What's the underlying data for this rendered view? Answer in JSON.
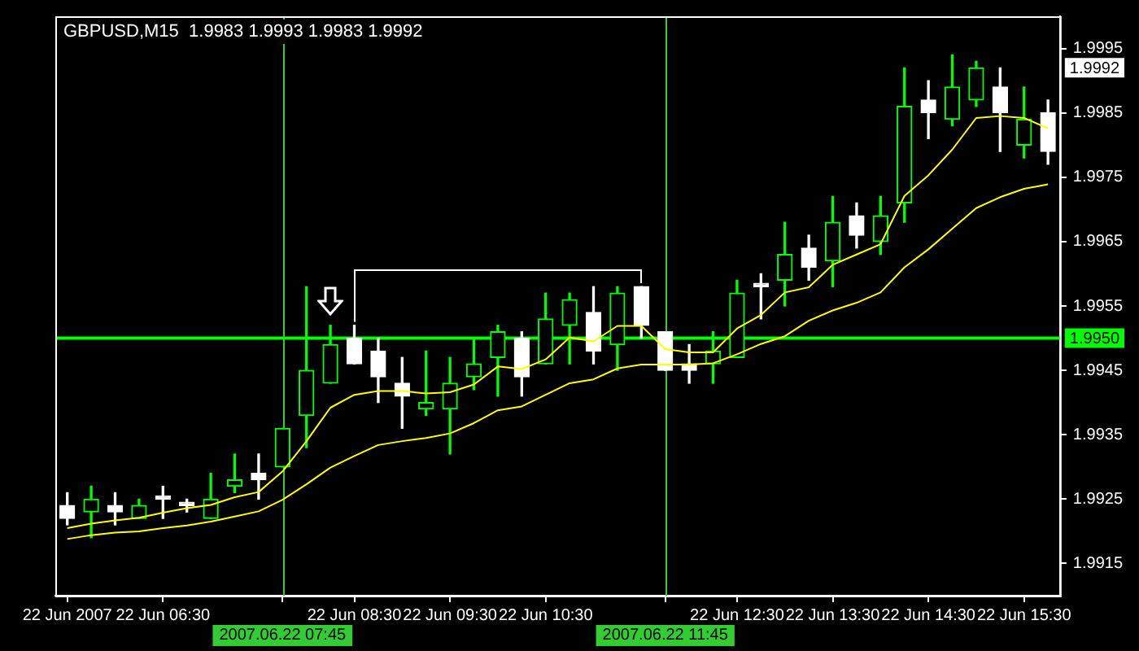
{
  "chart_data": {
    "type": "candlestick",
    "title": "GBPUSD,M15  1.9983 1.9993 1.9983 1.9992",
    "colors": [
      "#ffffff",
      "#00ff00",
      "#ffffff",
      "#00ff00",
      "#ffffff",
      "#ffffff",
      "#00ff00",
      "#00ff00",
      "#ffffff",
      "#00ff00",
      "#00ff00",
      "#00ff00",
      "#ffffff",
      "#ffffff",
      "#ffffff",
      "#00ff00",
      "#00ff00",
      "#00ff00",
      "#00ff00",
      "#ffffff",
      "#00ff00",
      "#00ff00",
      "#ffffff",
      "#00ff00",
      "#ffffff",
      "#ffffff",
      "#ffffff",
      "#00ff00",
      "#00ff00",
      "#ffffff",
      "#00ff00",
      "#ffffff",
      "#00ff00",
      "#ffffff",
      "#00ff00",
      "#00ff00",
      "#ffffff",
      "#00ff00",
      "#00ff00",
      "#ffffff",
      "#00ff00",
      "#ffffff"
    ],
    "categories": [
      "22 Jun 2007",
      null,
      null,
      null,
      "22 Jun 06:30",
      null,
      null,
      null,
      null,
      "2007.06.22 07:45",
      null,
      null,
      "22 Jun 08:30",
      null,
      null,
      null,
      "22 Jun 09:30",
      null,
      null,
      null,
      "22 Jun 10:30",
      null,
      null,
      null,
      null,
      "2007.06.22 11:45",
      null,
      null,
      "22 Jun 12:30",
      null,
      null,
      null,
      "22 Jun 13:30",
      null,
      null,
      null,
      "22 Jun 14:30",
      null,
      null,
      null,
      "22 Jun 15:30",
      null
    ],
    "ohlc": [
      [
        1.9924,
        1.9926,
        1.9921,
        1.9922
      ],
      [
        1.9923,
        1.9927,
        1.9919,
        1.9925
      ],
      [
        1.9924,
        1.9926,
        1.9921,
        1.9923
      ],
      [
        1.9922,
        1.9925,
        1.9922,
        1.9924
      ],
      [
        1.9925,
        1.9927,
        1.9922,
        1.9925
      ],
      [
        1.9924,
        1.9925,
        1.9923,
        1.9924
      ],
      [
        1.9922,
        1.9929,
        1.9922,
        1.9925
      ],
      [
        1.9927,
        1.9932,
        1.9926,
        1.9928
      ],
      [
        1.9929,
        1.9932,
        1.9925,
        1.9928
      ],
      [
        1.993,
        1.9936,
        1.993,
        1.9936
      ],
      [
        1.9938,
        1.9958,
        1.9933,
        1.9945
      ],
      [
        1.9943,
        1.9952,
        1.9943,
        1.9949
      ],
      [
        1.995,
        1.9952,
        1.9946,
        1.9946
      ],
      [
        1.9948,
        1.995,
        1.994,
        1.9944
      ],
      [
        1.9943,
        1.9947,
        1.9936,
        1.9941
      ],
      [
        1.9939,
        1.9948,
        1.9938,
        1.994
      ],
      [
        1.9939,
        1.9947,
        1.9932,
        1.9943
      ],
      [
        1.9944,
        1.995,
        1.9942,
        1.9946
      ],
      [
        1.9947,
        1.9952,
        1.9941,
        1.9951
      ],
      [
        1.995,
        1.9951,
        1.9941,
        1.9944
      ],
      [
        1.9946,
        1.9957,
        1.9946,
        1.9953
      ],
      [
        1.9952,
        1.9957,
        1.9946,
        1.9956
      ],
      [
        1.9954,
        1.9958,
        1.9946,
        1.9948
      ],
      [
        1.9949,
        1.9958,
        1.9945,
        1.9957
      ],
      [
        1.9958,
        1.9958,
        1.995,
        1.9952
      ],
      [
        1.9951,
        1.9951,
        1.9945,
        1.9945
      ],
      [
        1.9946,
        1.9949,
        1.9943,
        1.9945
      ],
      [
        1.9946,
        1.9951,
        1.9943,
        1.9948
      ],
      [
        1.9947,
        1.9959,
        1.9947,
        1.9957
      ],
      [
        1.9958,
        1.996,
        1.9953,
        1.9958
      ],
      [
        1.9959,
        1.9968,
        1.9955,
        1.9963
      ],
      [
        1.9964,
        1.9966,
        1.9959,
        1.9961
      ],
      [
        1.9962,
        1.9972,
        1.9958,
        1.9968
      ],
      [
        1.9969,
        1.9971,
        1.9964,
        1.9966
      ],
      [
        1.9965,
        1.9972,
        1.9963,
        1.9969
      ],
      [
        1.9971,
        1.9992,
        1.9968,
        1.9986
      ],
      [
        1.9987,
        1.999,
        1.9981,
        1.9985
      ],
      [
        1.9984,
        1.9994,
        1.9983,
        1.9989
      ],
      [
        1.9987,
        1.9993,
        1.9986,
        1.9992
      ],
      [
        1.9989,
        1.9992,
        1.9979,
        1.9985
      ],
      [
        1.998,
        1.9989,
        1.9978,
        1.9984
      ],
      [
        1.9985,
        1.9987,
        1.9977,
        1.9979
      ]
    ],
    "series": [
      {
        "type": "line",
        "color": "#ffff00",
        "values": [
          1.99205,
          1.99212,
          1.99217,
          1.99221,
          1.99229,
          1.99236,
          1.99241,
          1.99253,
          1.99261,
          1.99293,
          1.9934,
          1.99392,
          1.99412,
          1.99418,
          1.99418,
          1.99414,
          1.99416,
          1.99428,
          1.99456,
          1.99452,
          1.99467,
          1.99501,
          1.99495,
          1.99519,
          1.99519,
          1.99483,
          1.99478,
          1.99478,
          1.99515,
          1.99536,
          1.99571,
          1.99579,
          1.99614,
          1.9963,
          1.99646,
          1.99721,
          1.99753,
          1.99793,
          1.99842,
          1.99845,
          1.99842,
          1.99826
        ]
      },
      {
        "type": "line",
        "color": "#ffff00",
        "values": [
          1.99188,
          1.99194,
          1.99198,
          1.992,
          1.99205,
          1.99209,
          1.99215,
          1.99223,
          1.99231,
          1.99249,
          1.99273,
          1.99299,
          1.99317,
          1.99334,
          1.9934,
          1.99345,
          1.99352,
          1.99368,
          1.99388,
          1.99394,
          1.99412,
          1.9943,
          1.99436,
          1.99453,
          1.99459,
          1.99459,
          1.99459,
          1.99461,
          1.99475,
          1.99491,
          1.99503,
          1.99527,
          1.99543,
          1.99555,
          1.99571,
          1.9961,
          1.99638,
          1.9967,
          1.99702,
          1.99719,
          1.99732,
          1.99739
        ]
      }
    ],
    "ylim": [
      1.991,
      2.0
    ],
    "yticks": [
      1.9915,
      1.9925,
      1.9935,
      1.9945,
      1.9955,
      1.9965,
      1.9975,
      1.9985,
      1.9995
    ],
    "ref_lines": [
      {
        "axis": "y",
        "value": 1.995,
        "label": "1.9950",
        "color": "#00ff00"
      },
      {
        "axis": "x",
        "value": "2007.06.22 07:45",
        "color": "#33cc33"
      },
      {
        "axis": "x",
        "value": "2007.06.22 11:45",
        "color": "#33cc33"
      }
    ],
    "annotations": [
      {
        "text": "1.9992",
        "y": 1.9992
      }
    ]
  }
}
